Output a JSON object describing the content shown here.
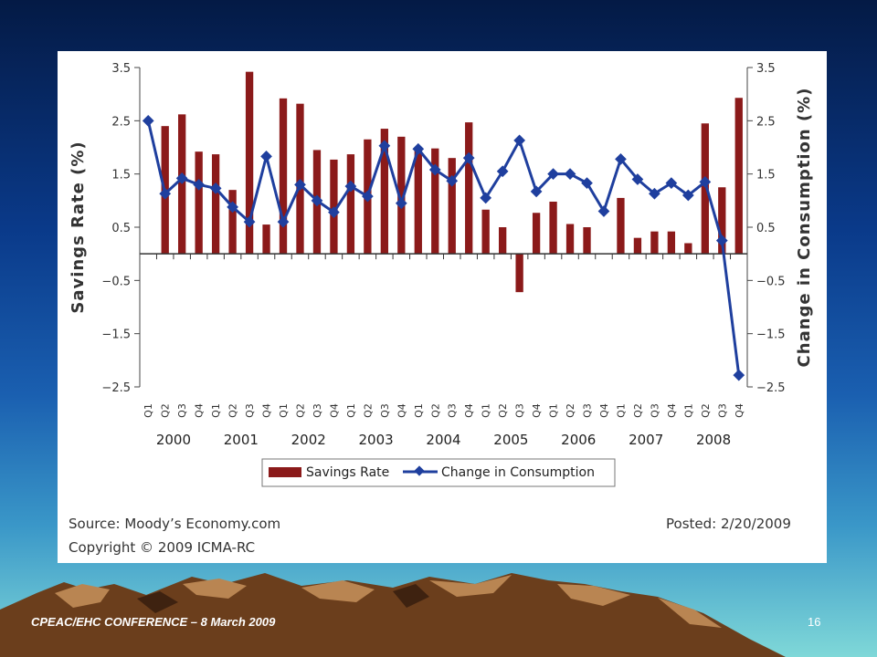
{
  "footer": {
    "conference": "CPEAC/EHC CONFERENCE – 8 March 2009",
    "page_number": "16"
  },
  "chart_data": {
    "type": "bar",
    "title": "",
    "ylabel_left": "Savings Rate (%)",
    "ylabel_right": "Change in Consumption (%)",
    "ylim_left": [
      -2.5,
      3.5
    ],
    "ylim_right": [
      -2.5,
      3.5
    ],
    "yticks": [
      3.5,
      2.5,
      1.5,
      0.5,
      -0.5,
      -1.5,
      -2.5
    ],
    "ytick_labels": [
      "3.5",
      "2.5",
      "1.5",
      "0.5",
      "−0.5",
      "−1.5",
      "−2.5"
    ],
    "categories": [
      "Q1",
      "Q2",
      "Q3",
      "Q4",
      "Q1",
      "Q2",
      "Q3",
      "Q4",
      "Q1",
      "Q2",
      "Q3",
      "Q4",
      "Q1",
      "Q2",
      "Q3",
      "Q4",
      "Q1",
      "Q2",
      "Q3",
      "Q4",
      "Q1",
      "Q2",
      "Q3",
      "Q4",
      "Q1",
      "Q2",
      "Q3",
      "Q4",
      "Q1",
      "Q2",
      "Q3",
      "Q4",
      "Q1",
      "Q2",
      "Q3",
      "Q4"
    ],
    "years": [
      {
        "label": "2000",
        "start": 0,
        "end": 3
      },
      {
        "label": "2001",
        "start": 4,
        "end": 7
      },
      {
        "label": "2002",
        "start": 8,
        "end": 11
      },
      {
        "label": "2003",
        "start": 12,
        "end": 15
      },
      {
        "label": "2004",
        "start": 16,
        "end": 19
      },
      {
        "label": "2005",
        "start": 20,
        "end": 23
      },
      {
        "label": "2006",
        "start": 24,
        "end": 27
      },
      {
        "label": "2007",
        "start": 28,
        "end": 31
      },
      {
        "label": "2008",
        "start": 32,
        "end": 35
      }
    ],
    "series": [
      {
        "name": "Savings Rate",
        "kind": "bar",
        "color": "#8b1a1a",
        "values": [
          0,
          2.4,
          2.62,
          1.92,
          1.87,
          1.2,
          3.42,
          0.55,
          2.92,
          2.82,
          1.95,
          1.77,
          1.87,
          2.15,
          2.35,
          2.2,
          2.0,
          1.98,
          1.8,
          2.47,
          0.83,
          0.5,
          -0.72,
          0.77,
          0.98,
          0.56,
          0.5,
          0.0,
          1.05,
          0.3,
          0.42,
          0.42,
          0.2,
          2.45,
          1.25,
          2.93
        ]
      },
      {
        "name": "Change in Consumption",
        "kind": "line",
        "color": "#1f3f9e",
        "values": [
          2.5,
          1.13,
          1.42,
          1.3,
          1.23,
          0.88,
          0.6,
          1.83,
          0.6,
          1.3,
          1.0,
          0.78,
          1.27,
          1.08,
          2.03,
          0.95,
          1.97,
          1.58,
          1.37,
          1.8,
          1.05,
          1.55,
          2.13,
          1.17,
          1.5,
          1.5,
          1.33,
          0.8,
          1.78,
          1.4,
          1.13,
          1.33,
          1.1,
          1.35,
          0.25,
          -2.28
        ]
      }
    ],
    "legend": [
      "Savings Rate",
      "Change in Consumption"
    ],
    "legend_position": "bottom",
    "source": "Source: Moody’s Economy.com",
    "copyright": "Copyright © 2009 ICMA-RC",
    "posted": "Posted: 2/20/2009"
  },
  "colors": {
    "bar": "#8b1a1a",
    "line": "#1f3f9e",
    "mountain": "#7a4a24",
    "mountain_light": "#b98552"
  }
}
